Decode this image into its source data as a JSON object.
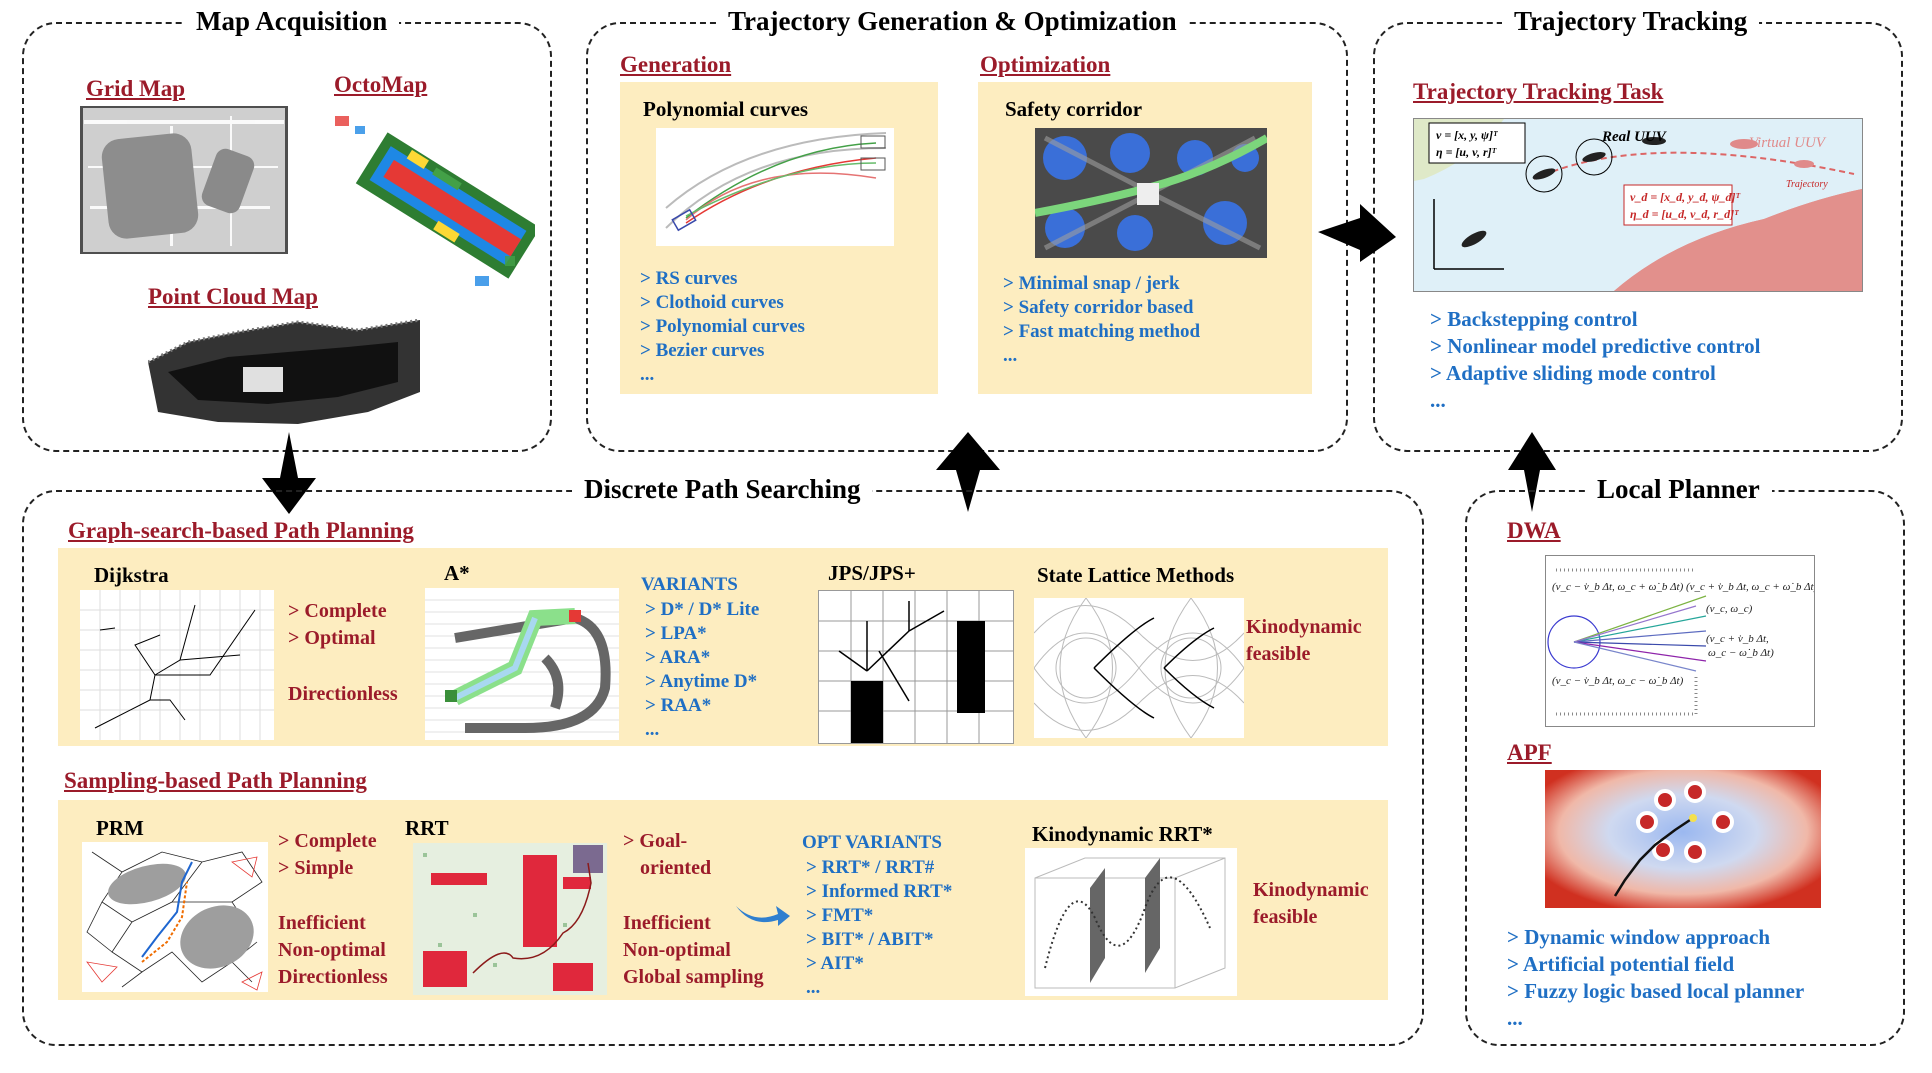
{
  "panels": {
    "map_acquisition": {
      "title": "Map Acquisition",
      "grid_map": "Grid Map",
      "octomap": "OctoMap",
      "point_cloud": "Point Cloud Map"
    },
    "trajectory_gen": {
      "title": "Trajectory Generation & Optimization",
      "generation": {
        "link": "Generation",
        "heading": "Polynomial curves",
        "items": [
          "> RS curves",
          "> Clothoid curves",
          "> Polynomial curves",
          "> Bezier curves",
          "..."
        ]
      },
      "optimization": {
        "link": "Optimization",
        "heading": "Safety corridor",
        "items": [
          "> Minimal snap / jerk",
          "> Safety corridor based",
          "> Fast matching method",
          "..."
        ]
      }
    },
    "tracking": {
      "title": "Trajectory Tracking",
      "link": "Trajectory Tracking Task",
      "figure": {
        "real_uuv": "Real UUV",
        "virtual_uuv": "Virtual UUV",
        "trajectory": "Trajectory",
        "eq1": "v = [x, y, ψ]ᵀ",
        "eq2": "η = [u, v, r]ᵀ",
        "eq3": "v_d = [x_d, y_d, ψ_d]ᵀ",
        "eq4": "η_d = [u_d, v_d, r_d]ᵀ"
      },
      "items": [
        "> Backstepping control",
        "> Nonlinear model predictive control",
        "> Adaptive sliding mode control",
        "..."
      ]
    },
    "discrete": {
      "title": "Discrete Path Searching",
      "graph": {
        "link": "Graph-search-based Path Planning",
        "dijkstra": "Dijkstra",
        "dijkstra_props": [
          "> Complete",
          "> Optimal"
        ],
        "directionless": "Directionless",
        "astar": "A*",
        "variants_title": "VARIANTS",
        "variants": [
          "> D* / D* Lite",
          "> LPA*",
          "> ARA*",
          "> Anytime D*",
          "> RAA*",
          "..."
        ],
        "jps": "JPS/JPS+",
        "lattice": "State Lattice Methods",
        "kinodynamic": [
          "Kinodynamic",
          "feasible"
        ]
      },
      "sampling": {
        "link": "Sampling-based Path Planning",
        "prm": "PRM",
        "prm_props": [
          "> Complete",
          "> Simple"
        ],
        "prm_cons": [
          "Inefficient",
          "Non-optimal",
          "Directionless"
        ],
        "rrt": "RRT",
        "rrt_props": [
          "> Goal-",
          "oriented"
        ],
        "rrt_cons": [
          "Inefficient",
          "Non-optimal",
          "Global sampling"
        ],
        "opt_title": "OPT VARIANTS",
        "opt_variants": [
          "> RRT* / RRT#",
          "> Informed RRT*",
          "> FMT*",
          "> BIT* / ABIT*",
          "> AIT*",
          "..."
        ],
        "kino_rrt": "Kinodynamic RRT*",
        "kinodynamic": [
          "Kinodynamic",
          "feasible"
        ]
      }
    },
    "local": {
      "title": "Local Planner",
      "dwa": "DWA",
      "apf": "APF",
      "items": [
        "> Dynamic window approach",
        "> Artificial potential field",
        "> Fuzzy logic based local planner",
        "..."
      ]
    }
  },
  "colors": {
    "accent_red": "#9b1b2a",
    "list_blue": "#1f6fc4",
    "cream": "#fdedc0"
  }
}
